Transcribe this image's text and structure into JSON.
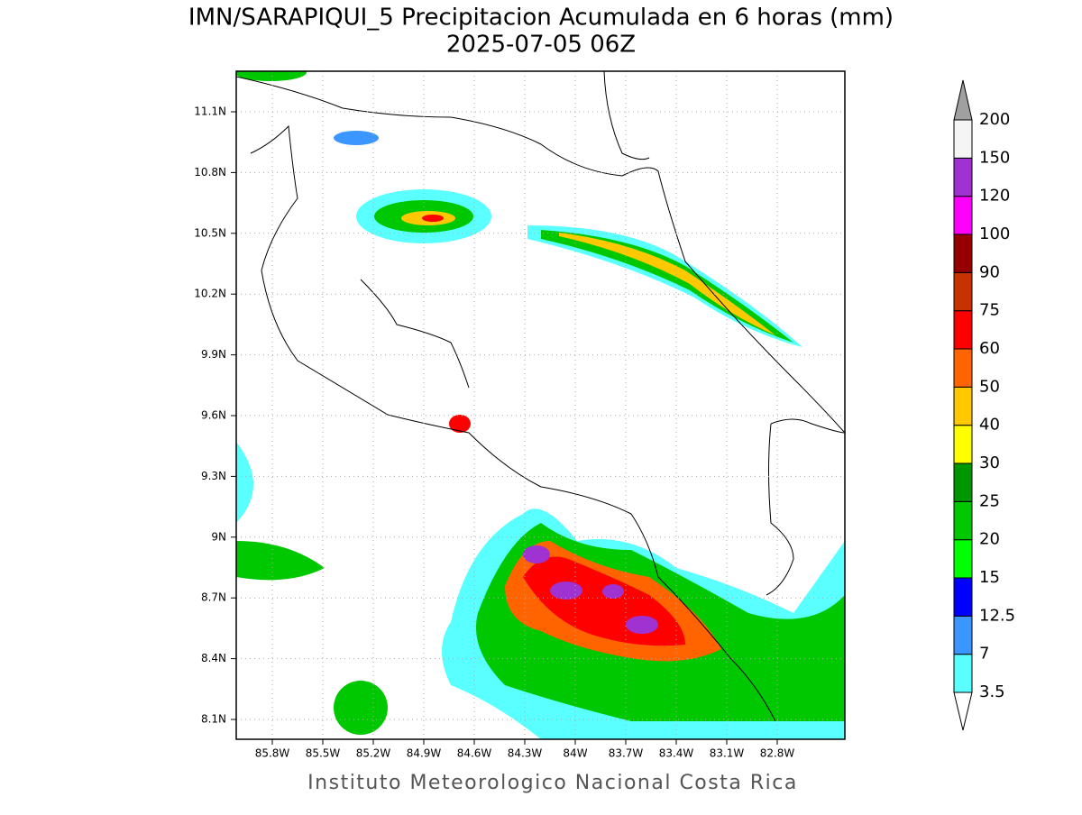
{
  "title": "IMN/SARAPIQUI_5 Precipitacion Acumulada en 6 horas (mm)",
  "subtitle": "2025-07-05 06Z",
  "lon_labels": [
    "85.8W",
    "85.5W",
    "85.2W",
    "84.9W",
    "84.6W",
    "84.3W",
    "84W",
    "83.7W",
    "83.4W",
    "83.1W",
    "82.8W"
  ],
  "lat_labels": [
    "11.1N",
    "10.8N",
    "10.5N",
    "10.2N",
    "9.9N",
    "9.6N",
    "9.3N",
    "9N",
    "8.7N",
    "8.4N",
    "8.1N"
  ],
  "colorbar": {
    "levels": [
      3.5,
      7,
      12.5,
      15,
      20,
      25,
      30,
      40,
      50,
      60,
      75,
      90,
      100,
      120,
      150,
      200
    ],
    "colors": [
      "#5affff",
      "#3c96ff",
      "#0000ff",
      "#00ff00",
      "#00c800",
      "#009600",
      "#ffff00",
      "#ffc800",
      "#ff6400",
      "#ff0000",
      "#c83200",
      "#960000",
      "#ff00ff",
      "#a032d2",
      "#f5f5f5"
    ],
    "over_color": "#a0a0a0",
    "under_color": "#ffffff"
  },
  "footer": "Instituto Meteorologico Nacional Costa Rica"
}
